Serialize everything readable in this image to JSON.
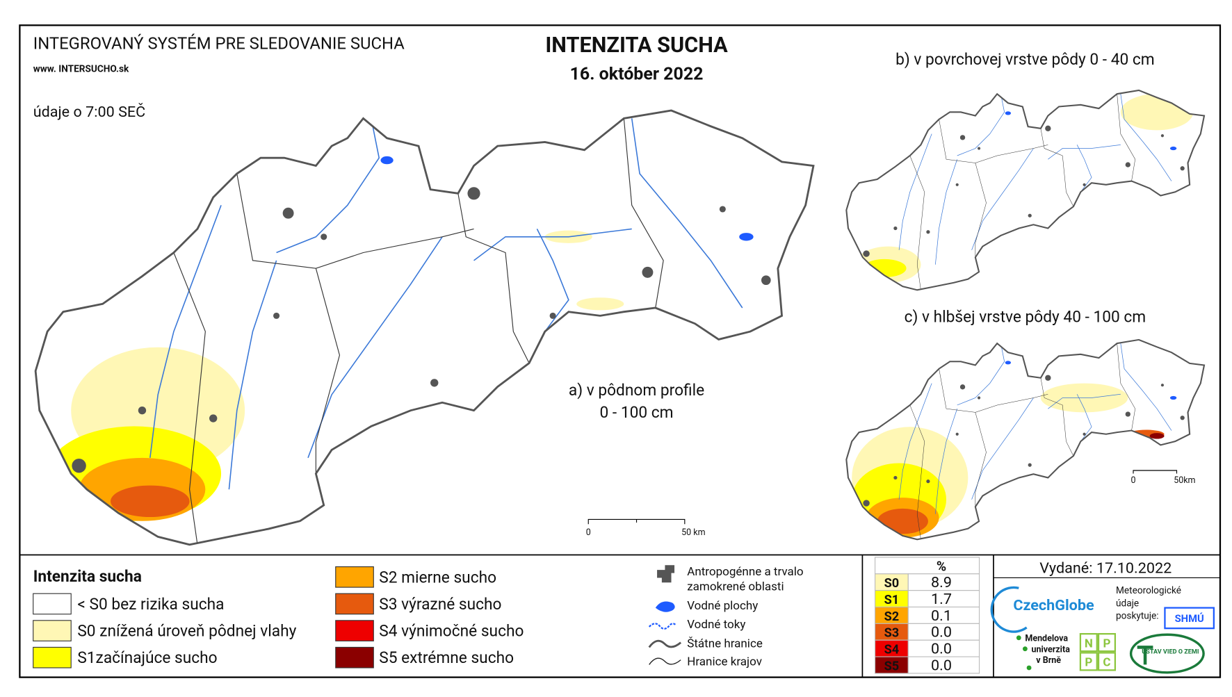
{
  "header": {
    "system": "INTEGROVANÝ SYSTÉM PRE SLEDOVANIE SUCHA",
    "url": "www. INTERSUCHO.sk",
    "note": "údaje o 7:00 SEČ",
    "title": "INTENZITA SUCHA",
    "date": "16. október 2022"
  },
  "maps": {
    "a_line1": "a) v pôdnom profile",
    "a_line2": "0 - 100 cm",
    "b": "b) v povrchovej vrstve pôdy 0 - 40 cm",
    "c": "c) v hlbšej vrstve pôdy 40 - 100 cm",
    "scale_main": [
      "0",
      "50 km"
    ],
    "scale_inset": [
      "0",
      "50km"
    ]
  },
  "legend": {
    "title": "Intenzita sucha",
    "items": [
      {
        "label": "< S0 bez rizika sucha",
        "color": "#ffffff"
      },
      {
        "label": "S0 znížená úroveň pôdnej vlahy",
        "color": "#fff7b5"
      },
      {
        "label": "S1začínajúce sucho",
        "color": "#ffff00"
      },
      {
        "label": "S2 mierne sucho",
        "color": "#ffa500"
      },
      {
        "label": "S3 výrazné sucho",
        "color": "#e65a0e"
      },
      {
        "label": "S4 výnimočné sucho",
        "color": "#ee0000"
      },
      {
        "label": "S5 extrémne sucho",
        "color": "#8b0000"
      }
    ]
  },
  "symbols": {
    "anthropogenic": [
      "Antropogénne a trvalo",
      "zamokrené oblasti"
    ],
    "water_bodies": "Vodné plochy",
    "streams": "Vodné toky",
    "state_border": "Štátne hranice",
    "region_border": "Hranice krajov"
  },
  "table": {
    "header": "%",
    "rows": [
      [
        "S0",
        "8.9"
      ],
      [
        "S1",
        "1.7"
      ],
      [
        "S2",
        "0.1"
      ],
      [
        "S3",
        "0.0"
      ],
      [
        "S4",
        "0.0"
      ],
      [
        "S5",
        "0.0"
      ]
    ]
  },
  "footer": {
    "issued": "Vydané: 17.10.2022",
    "czechglobe": "CzechGlobe",
    "meteo": [
      "Meteorologické",
      "údaje",
      "poskytuje:"
    ],
    "shmu": "SHMÚ",
    "mendel": [
      "Mendelova",
      "univerzita",
      "v Brně"
    ],
    "nppc": [
      "N",
      "P",
      "P",
      "C"
    ],
    "uvz": "ÚSTAV VIED O ZEMI"
  }
}
